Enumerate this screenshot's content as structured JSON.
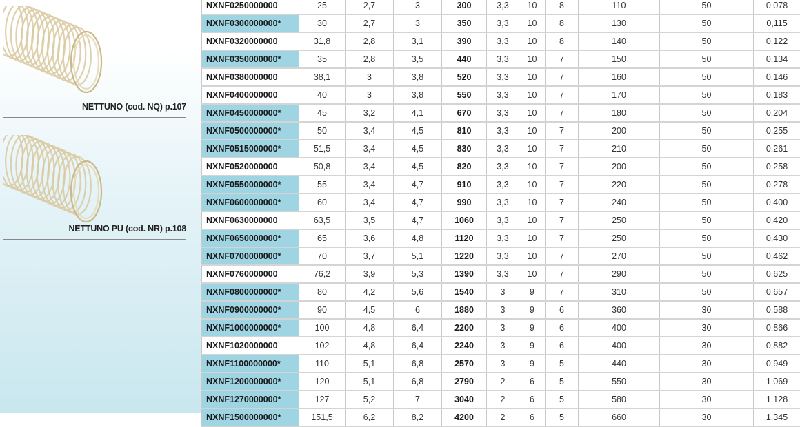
{
  "sidebar": {
    "products": [
      {
        "caption": "NETTUNO (cod. NQ) p.107",
        "icon": "spiral-hose-image"
      },
      {
        "caption": "NETTUNO PU (cod. NR) p.108",
        "icon": "spiral-hose-image"
      }
    ]
  },
  "colors": {
    "highlight": "#9fd5e3",
    "grid": "#c8c8c8"
  },
  "table": {
    "rows": [
      {
        "code": "NXNF0250000000",
        "hl": false,
        "v": [
          "25",
          "2,7",
          "3",
          "300",
          "3,3",
          "10",
          "8",
          "110",
          "50",
          "0,078"
        ]
      },
      {
        "code": "NXNF0300000000*",
        "hl": true,
        "v": [
          "30",
          "2,7",
          "3",
          "350",
          "3,3",
          "10",
          "8",
          "130",
          "50",
          "0,115"
        ]
      },
      {
        "code": "NXNF0320000000",
        "hl": false,
        "v": [
          "31,8",
          "2,8",
          "3,1",
          "390",
          "3,3",
          "10",
          "8",
          "140",
          "50",
          "0,122"
        ]
      },
      {
        "code": "NXNF0350000000*",
        "hl": true,
        "v": [
          "35",
          "2,8",
          "3,5",
          "440",
          "3,3",
          "10",
          "7",
          "150",
          "50",
          "0,134"
        ]
      },
      {
        "code": "NXNF0380000000",
        "hl": false,
        "v": [
          "38,1",
          "3",
          "3,8",
          "520",
          "3,3",
          "10",
          "7",
          "160",
          "50",
          "0,146"
        ]
      },
      {
        "code": "NXNF0400000000",
        "hl": false,
        "v": [
          "40",
          "3",
          "3,8",
          "550",
          "3,3",
          "10",
          "7",
          "170",
          "50",
          "0,183"
        ]
      },
      {
        "code": "NXNF0450000000*",
        "hl": true,
        "v": [
          "45",
          "3,2",
          "4,1",
          "670",
          "3,3",
          "10",
          "7",
          "180",
          "50",
          "0,204"
        ]
      },
      {
        "code": "NXNF0500000000*",
        "hl": true,
        "v": [
          "50",
          "3,4",
          "4,5",
          "810",
          "3,3",
          "10",
          "7",
          "200",
          "50",
          "0,255"
        ]
      },
      {
        "code": "NXNF0515000000*",
        "hl": true,
        "v": [
          "51,5",
          "3,4",
          "4,5",
          "830",
          "3,3",
          "10",
          "7",
          "210",
          "50",
          "0,261"
        ]
      },
      {
        "code": "NXNF0520000000",
        "hl": false,
        "v": [
          "50,8",
          "3,4",
          "4,5",
          "820",
          "3,3",
          "10",
          "7",
          "200",
          "50",
          "0,258"
        ]
      },
      {
        "code": "NXNF0550000000*",
        "hl": true,
        "v": [
          "55",
          "3,4",
          "4,7",
          "910",
          "3,3",
          "10",
          "7",
          "220",
          "50",
          "0,278"
        ]
      },
      {
        "code": "NXNF0600000000*",
        "hl": true,
        "v": [
          "60",
          "3,4",
          "4,7",
          "990",
          "3,3",
          "10",
          "7",
          "240",
          "50",
          "0,400"
        ]
      },
      {
        "code": "NXNF0630000000",
        "hl": false,
        "v": [
          "63,5",
          "3,5",
          "4,7",
          "1060",
          "3,3",
          "10",
          "7",
          "250",
          "50",
          "0,420"
        ]
      },
      {
        "code": "NXNF0650000000*",
        "hl": true,
        "v": [
          "65",
          "3,6",
          "4,8",
          "1120",
          "3,3",
          "10",
          "7",
          "250",
          "50",
          "0,430"
        ]
      },
      {
        "code": "NXNF0700000000*",
        "hl": true,
        "v": [
          "70",
          "3,7",
          "5,1",
          "1220",
          "3,3",
          "10",
          "7",
          "270",
          "50",
          "0,462"
        ]
      },
      {
        "code": "NXNF0760000000",
        "hl": false,
        "v": [
          "76,2",
          "3,9",
          "5,3",
          "1390",
          "3,3",
          "10",
          "7",
          "290",
          "50",
          "0,625"
        ]
      },
      {
        "code": "NXNF0800000000*",
        "hl": true,
        "v": [
          "80",
          "4,2",
          "5,6",
          "1540",
          "3",
          "9",
          "7",
          "310",
          "50",
          "0,657"
        ]
      },
      {
        "code": "NXNF0900000000*",
        "hl": true,
        "v": [
          "90",
          "4,5",
          "6",
          "1880",
          "3",
          "9",
          "6",
          "360",
          "30",
          "0,588"
        ]
      },
      {
        "code": "NXNF1000000000*",
        "hl": true,
        "v": [
          "100",
          "4,8",
          "6,4",
          "2200",
          "3",
          "9",
          "6",
          "400",
          "30",
          "0,866"
        ]
      },
      {
        "code": "NXNF1020000000",
        "hl": false,
        "v": [
          "102",
          "4,8",
          "6,4",
          "2240",
          "3",
          "9",
          "6",
          "400",
          "30",
          "0,882"
        ]
      },
      {
        "code": "NXNF1100000000*",
        "hl": true,
        "v": [
          "110",
          "5,1",
          "6,8",
          "2570",
          "3",
          "9",
          "5",
          "440",
          "30",
          "0,949"
        ]
      },
      {
        "code": "NXNF1200000000*",
        "hl": true,
        "v": [
          "120",
          "5,1",
          "6,8",
          "2790",
          "2",
          "6",
          "5",
          "550",
          "30",
          "1,069"
        ]
      },
      {
        "code": "NXNF1270000000*",
        "hl": true,
        "v": [
          "127",
          "5,2",
          "7",
          "3040",
          "2",
          "6",
          "5",
          "580",
          "30",
          "1,128"
        ]
      },
      {
        "code": "NXNF1500000000*",
        "hl": true,
        "v": [
          "151,5",
          "6,2",
          "8,2",
          "4200",
          "2",
          "6",
          "5",
          "660",
          "30",
          "1,345"
        ]
      }
    ]
  }
}
